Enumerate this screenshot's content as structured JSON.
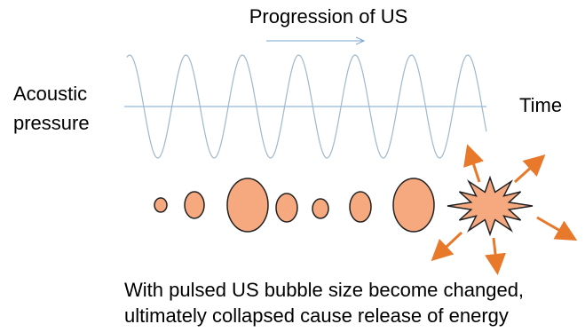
{
  "labels": {
    "progression": "Progression of US",
    "y_label": [
      "Acoustic",
      "pressure"
    ],
    "x_label": "Time"
  },
  "caption": [
    "With pulsed US bubble size become changed,",
    "ultimately collapsed cause release of energy"
  ]
}
